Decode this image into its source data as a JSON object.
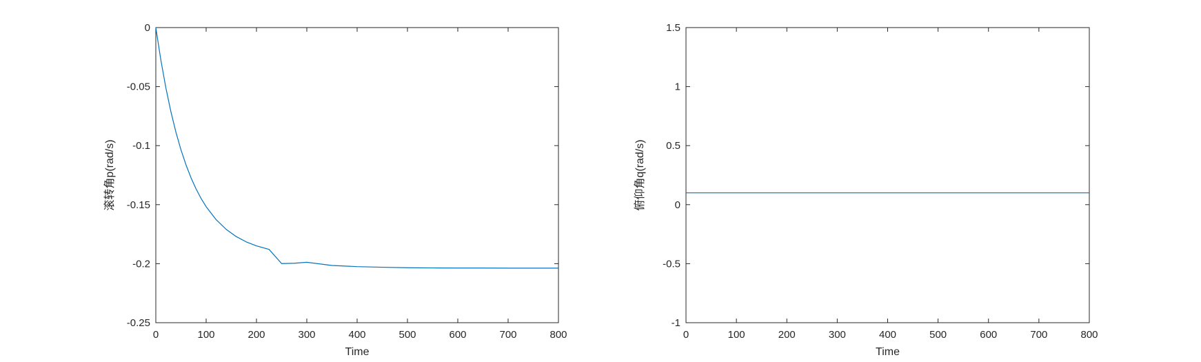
{
  "chart_data": [
    {
      "type": "line",
      "title": "",
      "xlabel": "Time",
      "ylabel": "滚转角p(rad/s)",
      "xlim": [
        0,
        800
      ],
      "ylim": [
        -0.25,
        0
      ],
      "xticks": [
        0,
        100,
        200,
        300,
        400,
        500,
        600,
        700,
        800
      ],
      "xtick_labels": [
        "0",
        "100",
        "200",
        "300",
        "400",
        "500",
        "600",
        "700",
        "800"
      ],
      "yticks": [
        0,
        -0.05,
        -0.1,
        -0.15,
        -0.2,
        -0.25
      ],
      "ytick_labels": [
        "0",
        "-0.05",
        "-0.1",
        "-0.15",
        "-0.2",
        "-0.25"
      ],
      "grid": false,
      "series_color": "#0072BD",
      "series": [
        {
          "x": [
            0,
            10,
            20,
            30,
            40,
            50,
            60,
            70,
            80,
            90,
            100,
            120,
            140,
            160,
            180,
            200,
            225,
            250,
            275,
            300,
            350,
            400,
            450,
            500,
            550,
            600,
            650,
            700,
            750,
            800
          ],
          "values": [
            0,
            -0.0275,
            -0.0511,
            -0.0713,
            -0.0887,
            -0.1036,
            -0.1163,
            -0.1273,
            -0.1367,
            -0.1448,
            -0.1517,
            -0.1628,
            -0.171,
            -0.1771,
            -0.1816,
            -0.1849,
            -0.1879,
            -0.1999,
            -0.1996,
            -0.1988,
            -0.2015,
            -0.2025,
            -0.203,
            -0.2034,
            -0.2036,
            -0.2037,
            -0.2037,
            -0.2038,
            -0.2038,
            -0.2038
          ]
        }
      ]
    },
    {
      "type": "line",
      "title": "",
      "xlabel": "Time",
      "ylabel": "俯仰角q(rad/s)",
      "xlim": [
        0,
        800
      ],
      "ylim": [
        -1,
        1.5
      ],
      "xticks": [
        0,
        100,
        200,
        300,
        400,
        500,
        600,
        700,
        800
      ],
      "xtick_labels": [
        "0",
        "100",
        "200",
        "300",
        "400",
        "500",
        "600",
        "700",
        "800"
      ],
      "yticks": [
        1.5,
        1,
        0.5,
        0,
        -0.5,
        -1
      ],
      "ytick_labels": [
        "1.5",
        "1",
        "0.5",
        "0",
        "-0.5",
        "-1"
      ],
      "grid": false,
      "series_color": "#0072BD",
      "series": [
        {
          "x": [
            0,
            800
          ],
          "values": [
            0.1,
            0.1
          ]
        }
      ]
    }
  ]
}
